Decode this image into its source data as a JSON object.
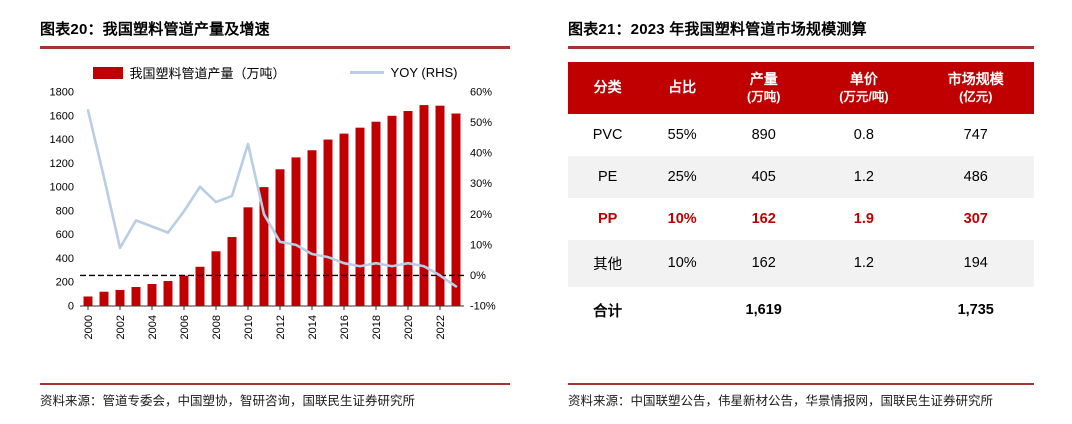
{
  "left_panel": {
    "title": "图表20：我国塑料管道产量及增速",
    "source": "资料来源：管道专委会，中国塑协，智研咨询，国联民生证券研究所"
  },
  "right_panel": {
    "title": "图表21：2023 年我国塑料管道市场规模测算",
    "source": "资料来源：中国联塑公告，伟星新材公告，华景情报网，国联民生证券研究所",
    "table": {
      "columns": [
        {
          "label": "分类",
          "sub": ""
        },
        {
          "label": "占比",
          "sub": ""
        },
        {
          "label": "产量",
          "sub": "(万吨)"
        },
        {
          "label": "单价",
          "sub": "(万元/吨)"
        },
        {
          "label": "市场规模",
          "sub": "(亿元)"
        }
      ],
      "rows": [
        {
          "cells": [
            "PVC",
            "55%",
            "890",
            "0.8",
            "747"
          ],
          "shaded": false,
          "highlight": false,
          "bold": false
        },
        {
          "cells": [
            "PE",
            "25%",
            "405",
            "1.2",
            "486"
          ],
          "shaded": true,
          "highlight": false,
          "bold": false
        },
        {
          "cells": [
            "PP",
            "10%",
            "162",
            "1.9",
            "307"
          ],
          "shaded": false,
          "highlight": true,
          "bold": false
        },
        {
          "cells": [
            "其他",
            "10%",
            "162",
            "1.2",
            "194"
          ],
          "shaded": true,
          "highlight": false,
          "bold": false
        },
        {
          "cells": [
            "合计",
            "",
            "1,619",
            "",
            "1,735"
          ],
          "shaded": false,
          "highlight": false,
          "bold": true
        }
      ]
    }
  },
  "chart_data": [
    {
      "type": "bar",
      "title": "我国塑料管道产量及增速",
      "categories": [
        2000,
        2001,
        2002,
        2003,
        2004,
        2005,
        2006,
        2007,
        2008,
        2009,
        2010,
        2011,
        2012,
        2013,
        2014,
        2015,
        2016,
        2017,
        2018,
        2019,
        2020,
        2021,
        2022,
        2023
      ],
      "series": [
        {
          "name": "我国塑料管道产量（万吨）",
          "type": "bar",
          "axis": "left",
          "color": "#C00000",
          "values": [
            80,
            120,
            135,
            160,
            185,
            210,
            255,
            330,
            460,
            580,
            830,
            1000,
            1150,
            1250,
            1310,
            1400,
            1450,
            1500,
            1550,
            1600,
            1640,
            1690,
            1685,
            1619
          ]
        },
        {
          "name": "YOY (RHS)",
          "type": "line",
          "axis": "right",
          "color": "#B9CDE5",
          "values": [
            54,
            32,
            9,
            18,
            16,
            14,
            21,
            29,
            24,
            26,
            43,
            20,
            11,
            10,
            7,
            6,
            4,
            3,
            4,
            3,
            4,
            3,
            0,
            -3.6
          ]
        }
      ],
      "left_axis": {
        "min": 0,
        "max": 1800,
        "step": 200
      },
      "right_axis": {
        "min": -10,
        "max": 60,
        "step": 10,
        "suffix": "%"
      },
      "x_tick_labels": [
        "2000",
        "2002",
        "2004",
        "2006",
        "2008",
        "2010",
        "2012",
        "2014",
        "2016",
        "2018",
        "2020",
        "2022"
      ],
      "reference_line": {
        "axis": "right",
        "value": 0,
        "style": "dashed",
        "color": "#000000"
      },
      "grid": false,
      "legend_position": "top"
    },
    {
      "type": "table",
      "title": "2023 年我国塑料管道市场规模测算",
      "columns": [
        "分类",
        "占比",
        "产量(万吨)",
        "单价(万元/吨)",
        "市场规模(亿元)"
      ],
      "rows": [
        [
          "PVC",
          "55%",
          890,
          0.8,
          747
        ],
        [
          "PE",
          "25%",
          405,
          1.2,
          486
        ],
        [
          "PP",
          "10%",
          162,
          1.9,
          307
        ],
        [
          "其他",
          "10%",
          162,
          1.2,
          194
        ],
        [
          "合计",
          "",
          1619,
          "",
          1735
        ]
      ]
    }
  ],
  "colors": {
    "accent_red": "#C00000",
    "bar_red": "#C00000",
    "line_blue": "#B9CDE5",
    "title_rule": "#A6342C",
    "table_header_bg": "#C00000",
    "table_shaded_row": "#F2F2F2",
    "highlight_text": "#C00000"
  }
}
